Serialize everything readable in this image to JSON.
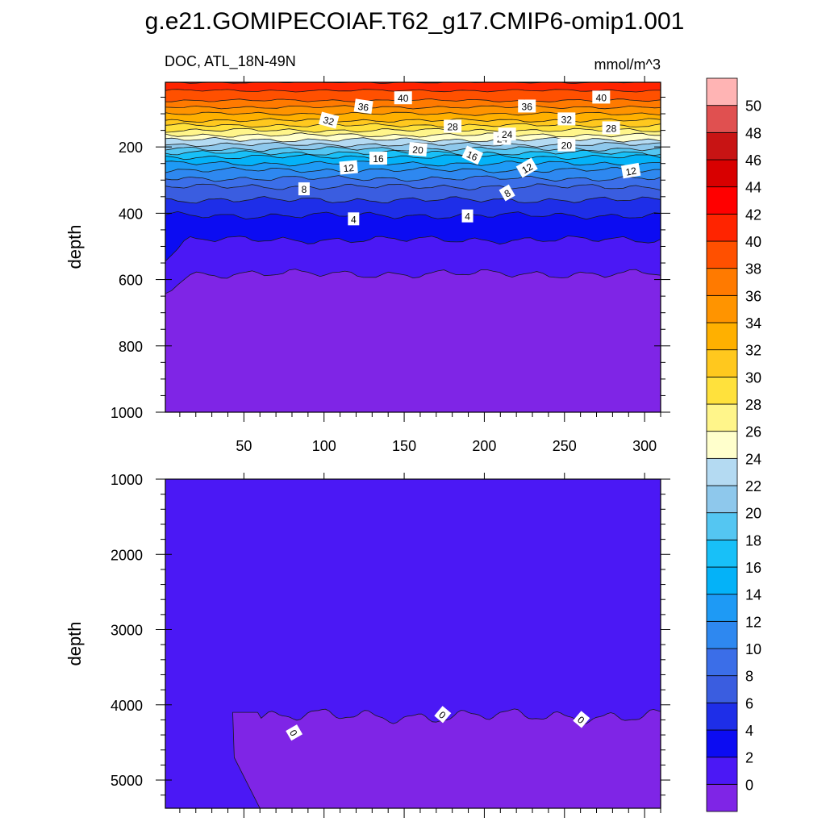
{
  "chart_data": {
    "type": "heatmap",
    "title": "g.e21.GOMIPECOIAF.T62_g17.CMIP6-omip1.001",
    "left_subtitle": "DOC, ATL_18N-49N",
    "right_subtitle": "mmol/m^3",
    "panels": [
      {
        "name": "upper",
        "ylabel": "depth",
        "xlim": [
          1,
          310
        ],
        "ylim": [
          1000,
          5
        ],
        "yticks": [
          200,
          400,
          600,
          800,
          1000
        ],
        "xticks": [
          50,
          100,
          150,
          200,
          250,
          300
        ],
        "surface_value": 42,
        "profile_depth": [
          5,
          30,
          60,
          90,
          120,
          150,
          175,
          200,
          230,
          270,
          320,
          380,
          420,
          480,
          540,
          600,
          1000
        ],
        "profile_value": [
          42,
          40,
          38,
          35,
          32,
          28,
          24.5,
          21,
          16,
          12,
          8,
          5,
          3.5,
          2,
          0.5,
          -0.2,
          -0.4
        ],
        "contour_labels": [
          "40",
          "36",
          "32",
          "28",
          "24",
          "20",
          "16",
          "12",
          "8",
          "4",
          "40",
          "36",
          "32",
          "24",
          "20",
          "28",
          "16",
          "12",
          "8",
          "4",
          "12"
        ]
      },
      {
        "name": "lower",
        "ylabel": "depth",
        "xlim": [
          1,
          310
        ],
        "ylim": [
          5375,
          1000
        ],
        "yticks": [
          1000,
          2000,
          3000,
          4000,
          5000
        ],
        "background_value": 0.5,
        "region_value": -0.5,
        "region_top_depth": 4150,
        "contour_labels": [
          "0",
          "0",
          "0"
        ]
      }
    ],
    "colorbar": {
      "levels": [
        0,
        2,
        4,
        6,
        8,
        10,
        12,
        14,
        16,
        18,
        20,
        22,
        24,
        26,
        28,
        30,
        32,
        34,
        36,
        38,
        40,
        42,
        44,
        46,
        48,
        50
      ],
      "colors": [
        "#7f25e6",
        "#4b18f5",
        "#0c0cf2",
        "#1e2ee8",
        "#3a5de0",
        "#3b6ee8",
        "#2e88f0",
        "#1e9af5",
        "#04b2f8",
        "#18c0f8",
        "#54c6f2",
        "#8ec8ec",
        "#b4daf2",
        "#ffffcc",
        "#fff58a",
        "#ffe13c",
        "#ffc81e",
        "#ffb000",
        "#ff9400",
        "#ff7a00",
        "#ff5000",
        "#ff2400",
        "#ff0000",
        "#d80000",
        "#c81414",
        "#e05050",
        "#ffb4b4"
      ]
    }
  }
}
